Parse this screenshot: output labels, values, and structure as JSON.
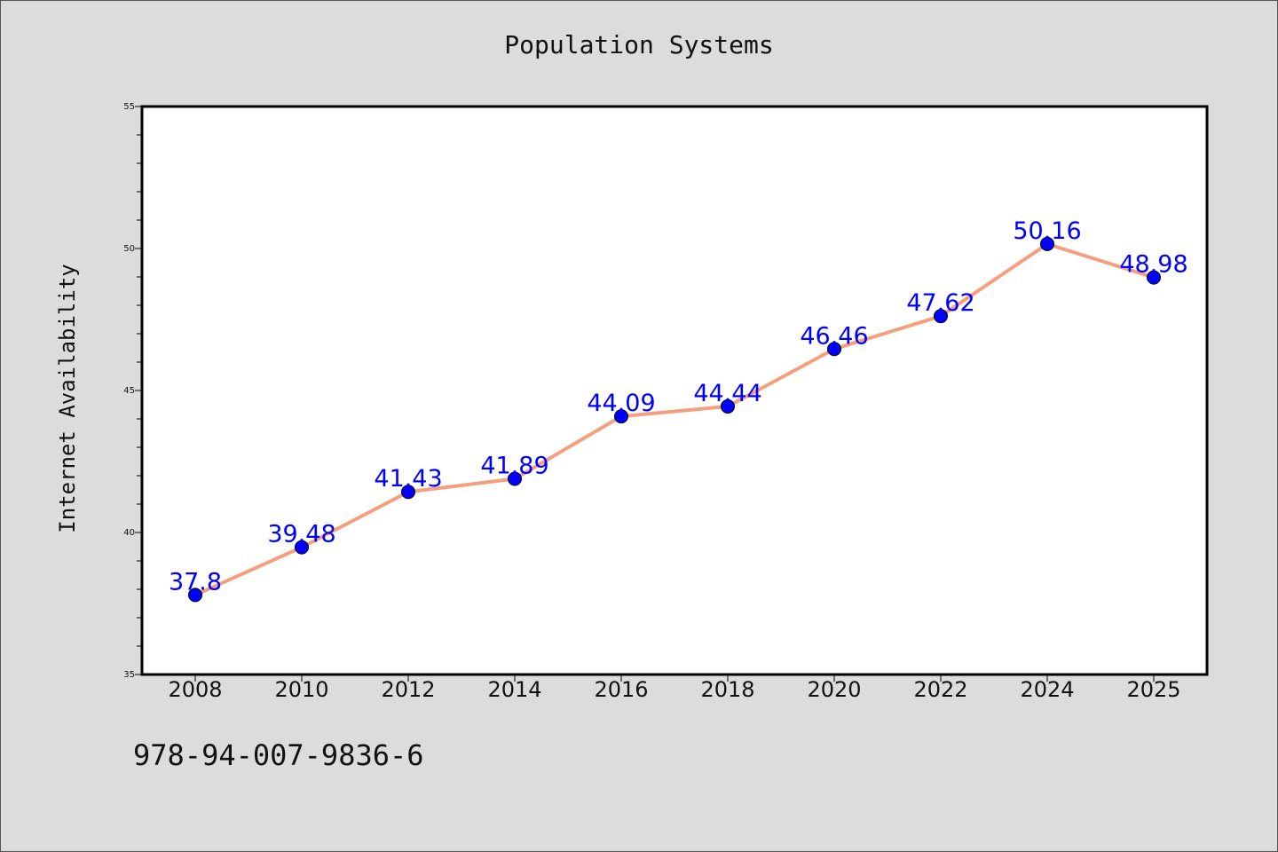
{
  "chart_data": {
    "type": "line",
    "title": "Population Systems",
    "xlabel": "",
    "ylabel": "Internet Availability",
    "categories": [
      "2008",
      "2010",
      "2012",
      "2014",
      "2016",
      "2018",
      "2020",
      "2022",
      "2024",
      "2025"
    ],
    "series": [
      {
        "values": [
          37.8,
          39.48,
          41.43,
          41.89,
          44.09,
          44.44,
          46.46,
          47.62,
          50.16,
          48.98
        ],
        "line_color": "#f4a07e",
        "marker_color": "#0000ff",
        "label_color": "#0000ff"
      }
    ],
    "data_labels": [
      "37.8",
      "39.48",
      "41.43",
      "41.89",
      "44.09",
      "44.44",
      "46.46",
      "47.62",
      "50.16",
      "48.98"
    ],
    "ylim": [
      35,
      55
    ],
    "y_ticks": [
      "35",
      "40",
      "45",
      "50",
      "55"
    ],
    "y_minor_step": 1,
    "grid": false,
    "plot_background": "#ffffff",
    "page_background": "#dcdcdc"
  },
  "footer": {
    "isbn": "978-94-007-9836-6"
  }
}
